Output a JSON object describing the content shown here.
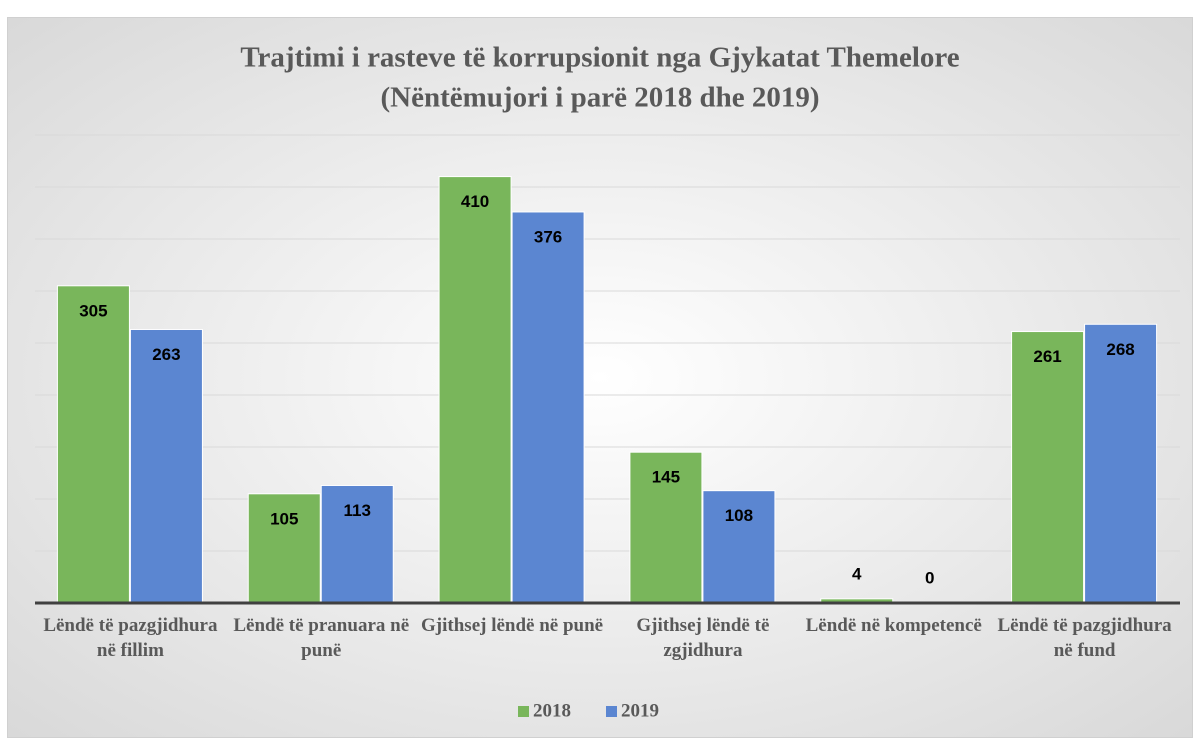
{
  "chart_data": {
    "type": "bar",
    "title": "Trajtimi i rasteve të korrupsionit nga Gjykatat Themelore",
    "subtitle": "(Nëntëmujori i parë 2018 dhe 2019)",
    "categories": [
      "Lëndë të pazgjidhura në fillim",
      "Lëndë të pranuara në punë",
      "Gjithsej lëndë në punë",
      "Gjithsej lëndë të zgjidhura",
      "Lëndë në kompetencë",
      "Lëndë të pazgjidhura në fund"
    ],
    "series": [
      {
        "name": "2018",
        "color": "#79b65b",
        "values": [
          305,
          105,
          410,
          145,
          4,
          261
        ]
      },
      {
        "name": "2019",
        "color": "#5b86d1",
        "values": [
          263,
          113,
          376,
          108,
          0,
          268
        ]
      }
    ],
    "ylim": [
      0,
      450
    ],
    "yticks": [
      0,
      50,
      100,
      150,
      200,
      250,
      300,
      350,
      400,
      450
    ],
    "grid": true
  }
}
